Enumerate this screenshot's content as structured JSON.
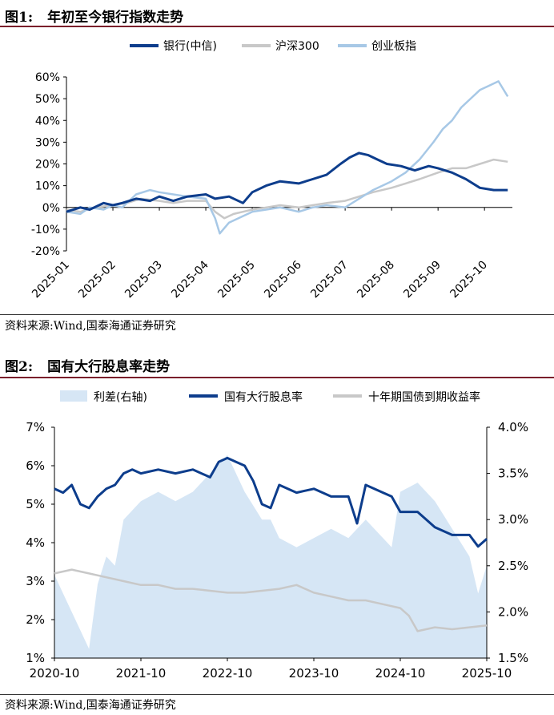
{
  "figure1": {
    "number": "图1:",
    "title": "年初至今银行指数走势",
    "source": "资料来源:Wind,国泰海通证券研究"
  },
  "figure2": {
    "number": "图2:",
    "title": "国有大行股息率走势",
    "source": "资料来源:Wind,国泰海通证券研究"
  },
  "chart_data": [
    {
      "type": "line",
      "title": "年初至今银行指数走势",
      "x_tick_labels": [
        "2025-01",
        "2025-02",
        "2025-03",
        "2025-04",
        "2025-05",
        "2025-06",
        "2025-07",
        "2025-08",
        "2025-09",
        "2025-10"
      ],
      "ylim": [
        -20,
        60
      ],
      "y_tick_labels": [
        "60%",
        "50%",
        "40%",
        "30%",
        "20%",
        "10%",
        "0%",
        "-10%",
        "-20%"
      ],
      "y_ticks": [
        60,
        50,
        40,
        30,
        20,
        10,
        0,
        -10,
        -20
      ],
      "x_range": [
        0,
        9.6
      ],
      "legend_position": "top",
      "series": [
        {
          "name": "银行(中信)",
          "color": "#0d3d8c",
          "x": [
            0,
            0.3,
            0.5,
            0.8,
            1.0,
            1.2,
            1.5,
            1.8,
            2.0,
            2.3,
            2.6,
            3.0,
            3.2,
            3.5,
            3.8,
            4.0,
            4.3,
            4.6,
            5.0,
            5.3,
            5.6,
            5.9,
            6.1,
            6.3,
            6.5,
            6.7,
            6.9,
            7.2,
            7.5,
            7.8,
            8.0,
            8.3,
            8.6,
            8.9,
            9.2,
            9.5
          ],
          "values": [
            -2,
            0,
            -1,
            2,
            1,
            2,
            4,
            3,
            5,
            3,
            5,
            6,
            4,
            5,
            2,
            7,
            10,
            12,
            11,
            13,
            15,
            20,
            23,
            25,
            24,
            22,
            20,
            19,
            17,
            19,
            18,
            16,
            13,
            9,
            8,
            8
          ]
        },
        {
          "name": "沪深300",
          "color": "#c8c8c8",
          "x": [
            0,
            0.3,
            0.6,
            1.0,
            1.3,
            1.6,
            2.0,
            2.3,
            2.6,
            3.0,
            3.2,
            3.4,
            3.6,
            3.8,
            4.0,
            4.3,
            4.6,
            5.0,
            5.3,
            5.6,
            6.0,
            6.3,
            6.6,
            7.0,
            7.3,
            7.6,
            8.0,
            8.3,
            8.6,
            8.9,
            9.2,
            9.5
          ],
          "values": [
            -1,
            -2,
            0,
            1,
            2,
            4,
            3,
            2,
            3,
            3,
            -2,
            -5,
            -3,
            -2,
            -1,
            0,
            1,
            0,
            1,
            2,
            3,
            5,
            7,
            9,
            11,
            13,
            16,
            18,
            18,
            20,
            22,
            21
          ]
        },
        {
          "name": "创业板指",
          "color": "#a7c8e6",
          "x": [
            0,
            0.3,
            0.5,
            0.8,
            1.0,
            1.2,
            1.5,
            1.8,
            2.0,
            2.3,
            2.6,
            3.0,
            3.2,
            3.3,
            3.5,
            3.8,
            4.0,
            4.3,
            4.6,
            5.0,
            5.3,
            5.6,
            6.0,
            6.3,
            6.6,
            7.0,
            7.3,
            7.6,
            7.9,
            8.1,
            8.3,
            8.5,
            8.7,
            8.9,
            9.1,
            9.3,
            9.5
          ],
          "values": [
            -2,
            -3,
            0,
            -1,
            1,
            0,
            6,
            8,
            7,
            6,
            5,
            4,
            -5,
            -12,
            -7,
            -4,
            -2,
            -1,
            0,
            -2,
            0,
            1,
            0,
            4,
            8,
            12,
            16,
            22,
            30,
            36,
            40,
            46,
            50,
            54,
            56,
            58,
            51
          ]
        }
      ]
    },
    {
      "type": "line",
      "title": "国有大行股息率走势",
      "x_tick_labels": [
        "2020-10",
        "2021-10",
        "2022-10",
        "2023-10",
        "2024-10",
        "2025-10"
      ],
      "x_range": [
        0,
        5
      ],
      "ylim": [
        1,
        7
      ],
      "y_tick_labels": [
        "7%",
        "6%",
        "5%",
        "4%",
        "3%",
        "2%",
        "1%"
      ],
      "y_ticks": [
        7,
        6,
        5,
        4,
        3,
        2,
        1
      ],
      "ylim_right": [
        1.5,
        4.0
      ],
      "y_tick_labels_right": [
        "4.0%",
        "3.5%",
        "3.0%",
        "2.5%",
        "2.0%",
        "1.5%"
      ],
      "y_ticks_right": [
        4.0,
        3.5,
        3.0,
        2.5,
        2.0,
        1.5
      ],
      "legend_position": "top",
      "series": [
        {
          "name": "利差(右轴)",
          "color": "#d6e6f5",
          "kind": "area",
          "axis": "right",
          "x": [
            0,
            0.1,
            0.2,
            0.3,
            0.4,
            0.5,
            0.6,
            0.7,
            0.8,
            0.9,
            1.0,
            1.2,
            1.4,
            1.6,
            1.8,
            1.9,
            2.0,
            2.1,
            2.2,
            2.4,
            2.5,
            2.6,
            2.8,
            3.0,
            3.2,
            3.4,
            3.6,
            3.8,
            3.9,
            4.0,
            4.2,
            4.4,
            4.6,
            4.8,
            4.9,
            5.0
          ],
          "values": [
            2.4,
            2.2,
            2.0,
            1.8,
            1.6,
            2.3,
            2.6,
            2.5,
            3.0,
            3.1,
            3.2,
            3.3,
            3.2,
            3.3,
            3.5,
            3.6,
            3.7,
            3.5,
            3.3,
            3.0,
            3.0,
            2.8,
            2.7,
            2.8,
            2.9,
            2.8,
            3.0,
            2.8,
            2.7,
            3.3,
            3.4,
            3.2,
            2.9,
            2.6,
            2.2,
            2.5
          ]
        },
        {
          "name": "国有大行股息率",
          "color": "#0d3d8c",
          "axis": "left",
          "x": [
            0,
            0.1,
            0.2,
            0.3,
            0.4,
            0.5,
            0.6,
            0.7,
            0.8,
            0.9,
            1.0,
            1.2,
            1.4,
            1.6,
            1.8,
            1.9,
            2.0,
            2.1,
            2.2,
            2.3,
            2.4,
            2.5,
            2.6,
            2.8,
            3.0,
            3.2,
            3.4,
            3.5,
            3.6,
            3.8,
            3.9,
            4.0,
            4.2,
            4.4,
            4.6,
            4.8,
            4.9,
            5.0
          ],
          "values": [
            5.4,
            5.3,
            5.5,
            5.0,
            4.9,
            5.2,
            5.4,
            5.5,
            5.8,
            5.9,
            5.8,
            5.9,
            5.8,
            5.9,
            5.7,
            6.1,
            6.2,
            6.1,
            6.0,
            5.6,
            5.0,
            4.9,
            5.5,
            5.3,
            5.4,
            5.2,
            5.2,
            4.5,
            5.5,
            5.3,
            5.2,
            4.8,
            4.8,
            4.4,
            4.2,
            4.2,
            3.9,
            4.1
          ]
        },
        {
          "name": "十年期国债到期收益率",
          "color": "#c8c8c8",
          "axis": "left",
          "x": [
            0,
            0.2,
            0.4,
            0.6,
            0.8,
            1.0,
            1.2,
            1.4,
            1.6,
            1.8,
            2.0,
            2.2,
            2.4,
            2.6,
            2.8,
            3.0,
            3.2,
            3.4,
            3.6,
            3.8,
            4.0,
            4.1,
            4.2,
            4.4,
            4.6,
            4.8,
            5.0
          ],
          "values": [
            3.2,
            3.3,
            3.2,
            3.1,
            3.0,
            2.9,
            2.9,
            2.8,
            2.8,
            2.75,
            2.7,
            2.7,
            2.75,
            2.8,
            2.9,
            2.7,
            2.6,
            2.5,
            2.5,
            2.4,
            2.3,
            2.1,
            1.7,
            1.8,
            1.75,
            1.8,
            1.85
          ]
        }
      ]
    }
  ]
}
